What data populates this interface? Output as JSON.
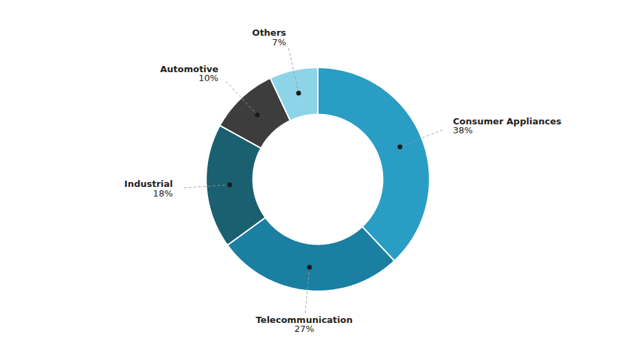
{
  "chart_data": {
    "type": "donut",
    "categories": [
      "Consumer Appliances",
      "Telecommunication",
      "Industrial",
      "Automotive",
      "Others"
    ],
    "values": [
      38,
      27,
      18,
      10,
      7
    ],
    "value_labels": [
      "38%",
      "27%",
      "18%",
      "10%",
      "7%"
    ],
    "colors": [
      "#2a9dc5",
      "#1a7fa0",
      "#1a6070",
      "#3d3d3d",
      "#8dd4e8"
    ],
    "data_labels": true
  }
}
